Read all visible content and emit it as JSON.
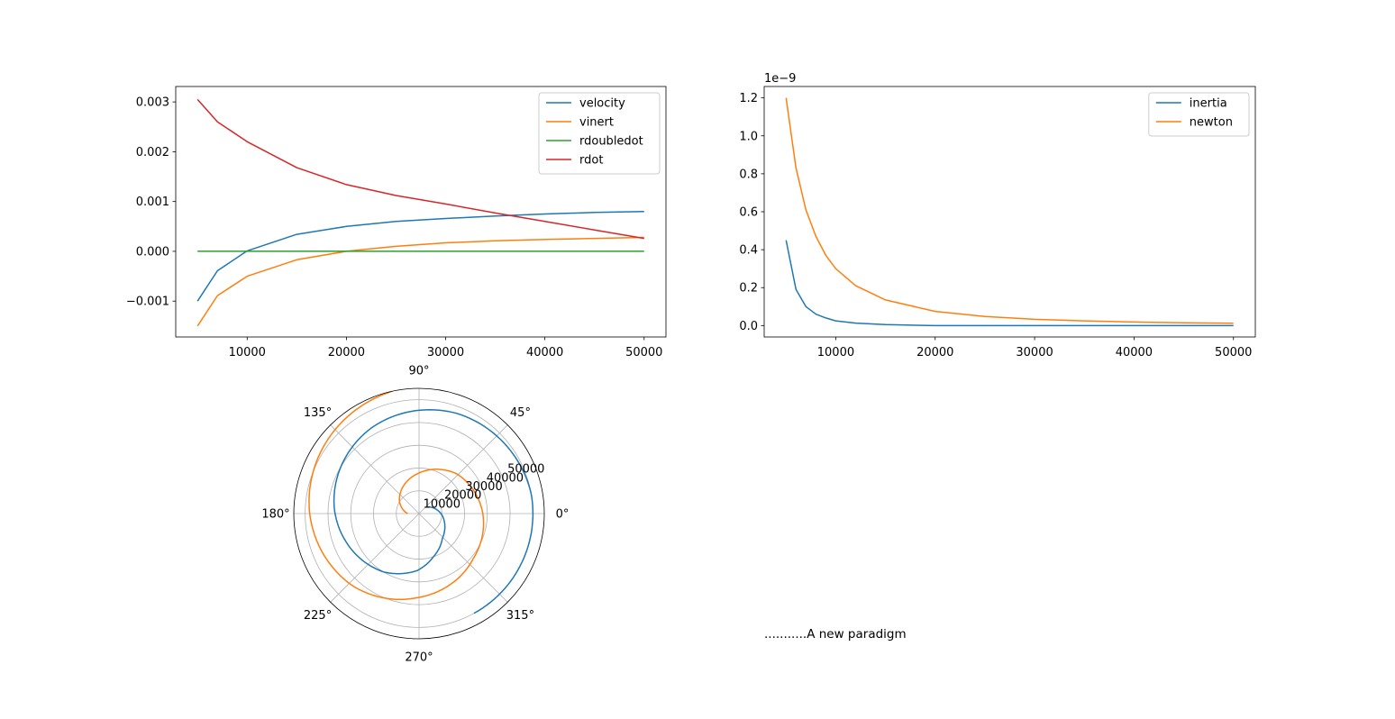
{
  "caption": "...........A new paradigm",
  "chart_data": [
    {
      "type": "line",
      "title": "",
      "xlim": [
        2800,
        52200
      ],
      "ylim": [
        -0.00172,
        0.00331
      ],
      "xticks": [
        10000,
        20000,
        30000,
        40000,
        50000
      ],
      "xtick_labels": [
        "10000",
        "20000",
        "30000",
        "40000",
        "50000"
      ],
      "yticks": [
        -0.001,
        0.0,
        0.001,
        0.002,
        0.003
      ],
      "ytick_labels": [
        "−0.001",
        "0.000",
        "0.001",
        "0.002",
        "0.003"
      ],
      "legend_position": "top-right",
      "grid": false,
      "series": [
        {
          "name": "velocity",
          "color": "#1f77b4",
          "x": [
            5000,
            7000,
            10000,
            15000,
            20000,
            25000,
            30000,
            35000,
            40000,
            45000,
            50000
          ],
          "y": [
            -0.001,
            -0.00039,
            1e-05,
            0.00034,
            0.0005,
            0.0006,
            0.00066,
            0.00071,
            0.00075,
            0.00078,
            0.0008
          ]
        },
        {
          "name": "vinert",
          "color": "#ff7f0e",
          "x": [
            5000,
            7000,
            10000,
            15000,
            20000,
            25000,
            30000,
            35000,
            40000,
            45000,
            50000
          ],
          "y": [
            -0.0015,
            -0.00089,
            -0.0005,
            -0.00017,
            0.0,
            0.0001,
            0.00017,
            0.00021,
            0.00024,
            0.00026,
            0.00028
          ]
        },
        {
          "name": "rdoubledot",
          "color": "#2ca02c",
          "x": [
            5000,
            50000
          ],
          "y": [
            0.0,
            0.0
          ]
        },
        {
          "name": "rdot",
          "color": "#d62728",
          "x": [
            5000,
            7000,
            10000,
            15000,
            20000,
            25000,
            30000,
            35000,
            40000,
            45000,
            50000
          ],
          "y": [
            0.00305,
            0.0026,
            0.0022,
            0.00168,
            0.00134,
            0.00112,
            0.00095,
            0.00077,
            0.0006,
            0.00043,
            0.00026
          ]
        }
      ]
    },
    {
      "type": "line",
      "title": "",
      "offset_label": "1e−9",
      "xlim": [
        2800,
        52200
      ],
      "ylim": [
        -0.06,
        1.26
      ],
      "xticks": [
        10000,
        20000,
        30000,
        40000,
        50000
      ],
      "xtick_labels": [
        "10000",
        "20000",
        "30000",
        "40000",
        "50000"
      ],
      "yticks": [
        0.0,
        0.2,
        0.4,
        0.6,
        0.8,
        1.0,
        1.2
      ],
      "ytick_labels": [
        "0.0",
        "0.2",
        "0.4",
        "0.6",
        "0.8",
        "1.0",
        "1.2"
      ],
      "legend_position": "top-right",
      "grid": false,
      "series": [
        {
          "name": "inertia",
          "color": "#1f77b4",
          "x": [
            5000,
            6000,
            7000,
            8000,
            9000,
            10000,
            12000,
            15000,
            20000,
            30000,
            40000,
            50000
          ],
          "y": [
            0.45,
            0.19,
            0.1,
            0.06,
            0.04,
            0.025,
            0.013,
            0.005,
            0.0,
            0.0,
            0.0,
            0.0
          ]
        },
        {
          "name": "newton",
          "color": "#ff7f0e",
          "x": [
            5000,
            6000,
            7000,
            8000,
            9000,
            10000,
            12000,
            15000,
            20000,
            25000,
            30000,
            35000,
            40000,
            45000,
            50000
          ],
          "y": [
            1.2,
            0.83,
            0.61,
            0.47,
            0.37,
            0.3,
            0.21,
            0.135,
            0.075,
            0.048,
            0.033,
            0.025,
            0.019,
            0.015,
            0.012
          ]
        }
      ]
    },
    {
      "type": "polar",
      "title": "",
      "rmax": 55000,
      "grid": true,
      "rticks": [
        10000,
        20000,
        30000,
        40000,
        50000
      ],
      "rtick_labels": [
        "10000",
        "20000",
        "30000",
        "40000",
        "50000"
      ],
      "theta_ticks_deg": [
        0,
        45,
        90,
        135,
        180,
        225,
        270,
        315
      ],
      "theta_tick_labels": [
        "0°",
        "45°",
        "90°",
        "135°",
        "180°",
        "225°",
        "270°",
        "315°"
      ],
      "series": [
        {
          "color": "#1f77b4",
          "points": [
            [
              0.611,
              5000
            ],
            [
              -0.05,
              10000
            ],
            [
              -0.82,
              15000
            ],
            [
              -1.25,
              20000
            ],
            [
              -1.6,
              25000
            ],
            [
              -2.12,
              30000
            ],
            [
              -3.16,
              37000
            ],
            [
              -4.2,
              43000
            ],
            [
              -5.07,
              47000
            ],
            [
              -6.1,
              50000
            ],
            [
              -7.04,
              50000
            ],
            [
              -7.35,
              50000
            ]
          ]
        },
        {
          "color": "#ff7f0e",
          "points": [
            [
              3.142,
              5000
            ],
            [
              2.6,
              10000
            ],
            [
              1.55,
              18000
            ],
            [
              0.82,
              24000
            ],
            [
              0.0,
              28000
            ],
            [
              -0.7,
              31000
            ],
            [
              -1.6,
              37000
            ],
            [
              -2.3,
              43000
            ],
            [
              -3.14,
              48000
            ],
            [
              -3.9,
              52000
            ],
            [
              -4.5,
              55000
            ]
          ]
        }
      ]
    }
  ]
}
